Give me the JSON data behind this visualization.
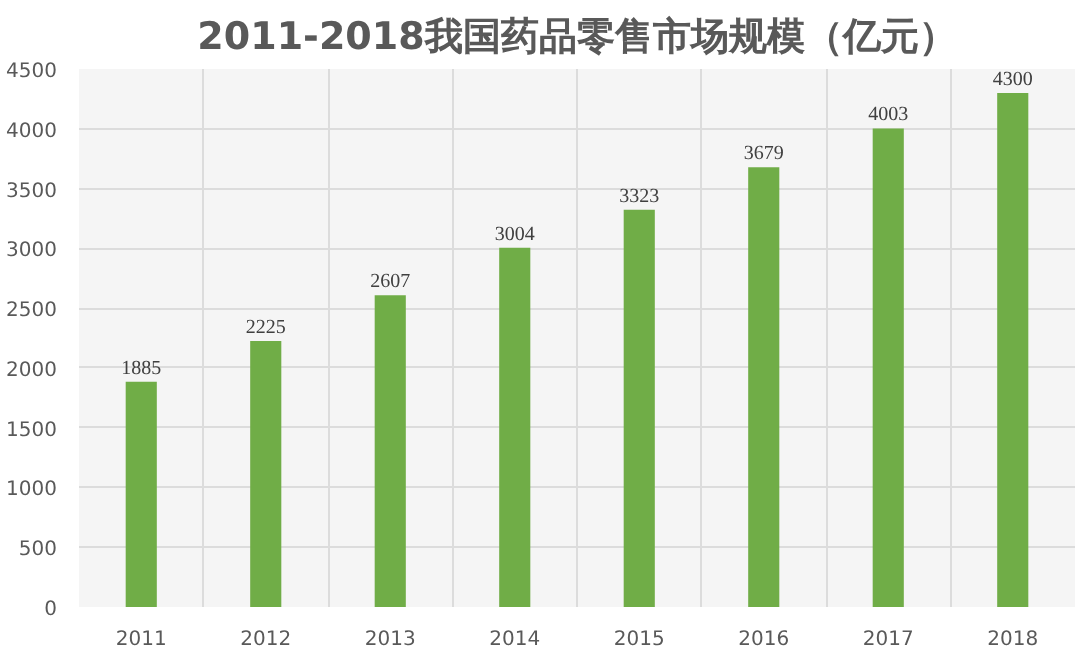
{
  "chart_data": {
    "type": "bar",
    "title": "2011-2018我国药品零售市场规模（亿元）",
    "categories": [
      "2011",
      "2012",
      "2013",
      "2014",
      "2015",
      "2016",
      "2017",
      "2018"
    ],
    "values": [
      1885,
      2225,
      2607,
      3004,
      3323,
      3679,
      4003,
      4300
    ],
    "color": "#70ad47",
    "ylim": [
      0,
      4500
    ],
    "yticks": [
      0,
      500,
      1000,
      1500,
      2000,
      2500,
      3000,
      3500,
      4000,
      4500
    ],
    "grid": true,
    "data_labels": true
  }
}
